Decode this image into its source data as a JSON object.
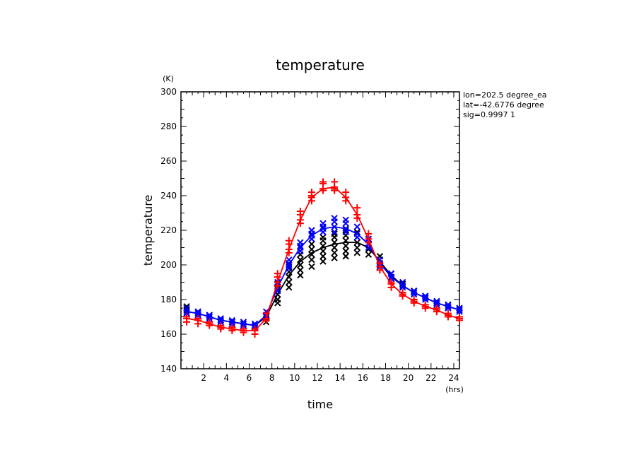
{
  "chart_data": {
    "type": "line",
    "title": "temperature",
    "xlabel": "time",
    "ylabel": "temperature",
    "x_unit": "(hrs)",
    "y_unit": "(K)",
    "xlim": [
      0,
      24.5
    ],
    "ylim": [
      140,
      300
    ],
    "xticks": [
      2,
      4,
      6,
      8,
      10,
      12,
      14,
      16,
      18,
      20,
      22,
      24
    ],
    "yticks": [
      140,
      160,
      180,
      200,
      220,
      240,
      260,
      280,
      300
    ],
    "grid": false,
    "info_lines": [
      "lon=202.5 degree_ea",
      "lat=-42.6776 degree",
      "sig=0.9997 1"
    ],
    "series": [
      {
        "color": "#ff0000",
        "marker": "plus",
        "x": [
          0.5,
          1.5,
          2.5,
          3.5,
          4.5,
          5.5,
          6.5,
          7.5,
          8.5,
          9.5,
          10.5,
          11.5,
          12.5,
          13.5,
          14.5,
          15.5,
          16.5,
          17.5,
          18.5,
          19.5,
          20.5,
          21.5,
          22.5,
          23.5,
          24.5
        ],
        "values": [
          169,
          168,
          166,
          164,
          163,
          162,
          162,
          169,
          190,
          209,
          226,
          239,
          244,
          245,
          239,
          229,
          215,
          199,
          189,
          183,
          179,
          176,
          174,
          171,
          169
        ],
        "scatter": [
          [
            0.5,
            169
          ],
          [
            0.5,
            170
          ],
          [
            0.5,
            167
          ],
          [
            1.5,
            168
          ],
          [
            1.5,
            166
          ],
          [
            1.5,
            169
          ],
          [
            2.5,
            166
          ],
          [
            2.5,
            165
          ],
          [
            2.5,
            167
          ],
          [
            3.5,
            164
          ],
          [
            3.5,
            165
          ],
          [
            3.5,
            163
          ],
          [
            4.5,
            163
          ],
          [
            4.5,
            162
          ],
          [
            4.5,
            164
          ],
          [
            5.5,
            162
          ],
          [
            5.5,
            163
          ],
          [
            5.5,
            161
          ],
          [
            6.5,
            162
          ],
          [
            6.5,
            160
          ],
          [
            6.5,
            163
          ],
          [
            7.5,
            169
          ],
          [
            7.5,
            172
          ],
          [
            7.5,
            168
          ],
          [
            8.5,
            190
          ],
          [
            8.5,
            195
          ],
          [
            8.5,
            193
          ],
          [
            8.5,
            188
          ],
          [
            9.5,
            209
          ],
          [
            9.5,
            212
          ],
          [
            9.5,
            214
          ],
          [
            9.5,
            207
          ],
          [
            10.5,
            226
          ],
          [
            10.5,
            229
          ],
          [
            10.5,
            231
          ],
          [
            10.5,
            224
          ],
          [
            11.5,
            239
          ],
          [
            11.5,
            242
          ],
          [
            11.5,
            237
          ],
          [
            11.5,
            240
          ],
          [
            12.5,
            244
          ],
          [
            12.5,
            247
          ],
          [
            12.5,
            248
          ],
          [
            12.5,
            243
          ],
          [
            13.5,
            245
          ],
          [
            13.5,
            248
          ],
          [
            13.5,
            243
          ],
          [
            13.5,
            244
          ],
          [
            14.5,
            239
          ],
          [
            14.5,
            242
          ],
          [
            14.5,
            237
          ],
          [
            15.5,
            229
          ],
          [
            15.5,
            233
          ],
          [
            15.5,
            227
          ],
          [
            16.5,
            215
          ],
          [
            16.5,
            218
          ],
          [
            16.5,
            213
          ],
          [
            17.5,
            199
          ],
          [
            17.5,
            197
          ],
          [
            17.5,
            201
          ],
          [
            18.5,
            189
          ],
          [
            18.5,
            187
          ],
          [
            18.5,
            190
          ],
          [
            19.5,
            183
          ],
          [
            19.5,
            182
          ],
          [
            19.5,
            184
          ],
          [
            20.5,
            179
          ],
          [
            20.5,
            178
          ],
          [
            20.5,
            180
          ],
          [
            21.5,
            176
          ],
          [
            21.5,
            175
          ],
          [
            21.5,
            177
          ],
          [
            22.5,
            174
          ],
          [
            22.5,
            173
          ],
          [
            22.5,
            175
          ],
          [
            23.5,
            171
          ],
          [
            23.5,
            170
          ],
          [
            23.5,
            172
          ],
          [
            24.5,
            169
          ],
          [
            24.5,
            168
          ],
          [
            24.5,
            170
          ]
        ]
      },
      {
        "color": "#0000ff",
        "marker": "cross",
        "x": [
          0.5,
          1.5,
          2.5,
          3.5,
          4.5,
          5.5,
          6.5,
          7.5,
          8.5,
          9.5,
          10.5,
          11.5,
          12.5,
          13.5,
          14.5,
          15.5,
          16.5,
          17.5,
          18.5,
          19.5,
          20.5,
          21.5,
          22.5,
          23.5,
          24.5
        ],
        "values": [
          173,
          172,
          170,
          168,
          167,
          166,
          165,
          171,
          187,
          200,
          210,
          217,
          221,
          222,
          221,
          218,
          212,
          201,
          193,
          188,
          184,
          181,
          178,
          176,
          174
        ],
        "scatter": [
          [
            0.5,
            173
          ],
          [
            0.5,
            175
          ],
          [
            0.5,
            172
          ],
          [
            1.5,
            172
          ],
          [
            1.5,
            173
          ],
          [
            1.5,
            171
          ],
          [
            2.5,
            170
          ],
          [
            2.5,
            171
          ],
          [
            2.5,
            169
          ],
          [
            3.5,
            168
          ],
          [
            3.5,
            169
          ],
          [
            3.5,
            167
          ],
          [
            4.5,
            167
          ],
          [
            4.5,
            166
          ],
          [
            4.5,
            168
          ],
          [
            5.5,
            166
          ],
          [
            5.5,
            165
          ],
          [
            5.5,
            167
          ],
          [
            6.5,
            165
          ],
          [
            6.5,
            164
          ],
          [
            6.5,
            166
          ],
          [
            7.5,
            171
          ],
          [
            7.5,
            173
          ],
          [
            7.5,
            170
          ],
          [
            8.5,
            187
          ],
          [
            8.5,
            190
          ],
          [
            8.5,
            185
          ],
          [
            9.5,
            200
          ],
          [
            9.5,
            203
          ],
          [
            9.5,
            198
          ],
          [
            9.5,
            201
          ],
          [
            10.5,
            210
          ],
          [
            10.5,
            213
          ],
          [
            10.5,
            208
          ],
          [
            10.5,
            211
          ],
          [
            11.5,
            217
          ],
          [
            11.5,
            220
          ],
          [
            11.5,
            215
          ],
          [
            11.5,
            218
          ],
          [
            12.5,
            221
          ],
          [
            12.5,
            224
          ],
          [
            12.5,
            219
          ],
          [
            12.5,
            222
          ],
          [
            13.5,
            222
          ],
          [
            13.5,
            227
          ],
          [
            13.5,
            225
          ],
          [
            13.5,
            219
          ],
          [
            14.5,
            221
          ],
          [
            14.5,
            226
          ],
          [
            14.5,
            224
          ],
          [
            14.5,
            219
          ],
          [
            15.5,
            218
          ],
          [
            15.5,
            222
          ],
          [
            15.5,
            216
          ],
          [
            16.5,
            212
          ],
          [
            16.5,
            215
          ],
          [
            16.5,
            210
          ],
          [
            17.5,
            201
          ],
          [
            17.5,
            203
          ],
          [
            17.5,
            199
          ],
          [
            18.5,
            193
          ],
          [
            18.5,
            195
          ],
          [
            18.5,
            192
          ],
          [
            19.5,
            188
          ],
          [
            19.5,
            190
          ],
          [
            19.5,
            187
          ],
          [
            20.5,
            184
          ],
          [
            20.5,
            185
          ],
          [
            20.5,
            183
          ],
          [
            21.5,
            181
          ],
          [
            21.5,
            182
          ],
          [
            21.5,
            180
          ],
          [
            22.5,
            178
          ],
          [
            22.5,
            179
          ],
          [
            22.5,
            177
          ],
          [
            23.5,
            176
          ],
          [
            23.5,
            177
          ],
          [
            23.5,
            175
          ],
          [
            24.5,
            174
          ],
          [
            24.5,
            175
          ],
          [
            24.5,
            173
          ]
        ]
      },
      {
        "color": "#000000",
        "marker": "cross",
        "x": [
          0.5,
          1.5,
          2.5,
          3.5,
          4.5,
          5.5,
          6.5,
          7.5,
          8.5,
          9.5,
          10.5,
          11.5,
          12.5,
          13.5,
          14.5,
          15.5,
          16.5,
          17.5,
          18.5,
          19.5,
          20.5,
          21.5,
          22.5,
          23.5,
          24.5
        ],
        "values": [
          173,
          172,
          170,
          168,
          167,
          166,
          165,
          170,
          183,
          194,
          202,
          207,
          210,
          212,
          213,
          213,
          210,
          202,
          194,
          188,
          184,
          181,
          178,
          176,
          174
        ],
        "scatter": [
          [
            0.5,
            174
          ],
          [
            0.5,
            176
          ],
          [
            1.5,
            172
          ],
          [
            1.5,
            173
          ],
          [
            2.5,
            170
          ],
          [
            2.5,
            171
          ],
          [
            3.5,
            168
          ],
          [
            3.5,
            169
          ],
          [
            4.5,
            167
          ],
          [
            5.5,
            166
          ],
          [
            6.5,
            165
          ],
          [
            6.5,
            164
          ],
          [
            7.5,
            169
          ],
          [
            7.5,
            171
          ],
          [
            7.5,
            167
          ],
          [
            8.5,
            180
          ],
          [
            8.5,
            183
          ],
          [
            8.5,
            186
          ],
          [
            8.5,
            189
          ],
          [
            8.5,
            178
          ],
          [
            9.5,
            187
          ],
          [
            9.5,
            190
          ],
          [
            9.5,
            193
          ],
          [
            9.5,
            196
          ],
          [
            9.5,
            199
          ],
          [
            10.5,
            194
          ],
          [
            10.5,
            197
          ],
          [
            10.5,
            200
          ],
          [
            10.5,
            203
          ],
          [
            10.5,
            206
          ],
          [
            11.5,
            199
          ],
          [
            11.5,
            203
          ],
          [
            11.5,
            206
          ],
          [
            11.5,
            209
          ],
          [
            11.5,
            212
          ],
          [
            12.5,
            202
          ],
          [
            12.5,
            205
          ],
          [
            12.5,
            208
          ],
          [
            12.5,
            211
          ],
          [
            12.5,
            214
          ],
          [
            12.5,
            216
          ],
          [
            13.5,
            204
          ],
          [
            13.5,
            207
          ],
          [
            13.5,
            210
          ],
          [
            13.5,
            213
          ],
          [
            13.5,
            216
          ],
          [
            13.5,
            218
          ],
          [
            14.5,
            205
          ],
          [
            14.5,
            208
          ],
          [
            14.5,
            211
          ],
          [
            14.5,
            214
          ],
          [
            14.5,
            217
          ],
          [
            14.5,
            220
          ],
          [
            15.5,
            207
          ],
          [
            15.5,
            210
          ],
          [
            15.5,
            213
          ],
          [
            15.5,
            216
          ],
          [
            15.5,
            219
          ],
          [
            16.5,
            206
          ],
          [
            16.5,
            209
          ],
          [
            16.5,
            212
          ],
          [
            16.5,
            215
          ],
          [
            17.5,
            200
          ],
          [
            17.5,
            203
          ],
          [
            17.5,
            205
          ],
          [
            18.5,
            193
          ],
          [
            18.5,
            195
          ],
          [
            19.5,
            188
          ],
          [
            19.5,
            189
          ],
          [
            20.5,
            184
          ],
          [
            20.5,
            185
          ],
          [
            21.5,
            181
          ],
          [
            21.5,
            182
          ],
          [
            22.5,
            178
          ],
          [
            22.5,
            179
          ],
          [
            23.5,
            176
          ],
          [
            23.5,
            177
          ],
          [
            24.5,
            174
          ],
          [
            24.5,
            175
          ]
        ]
      }
    ]
  }
}
